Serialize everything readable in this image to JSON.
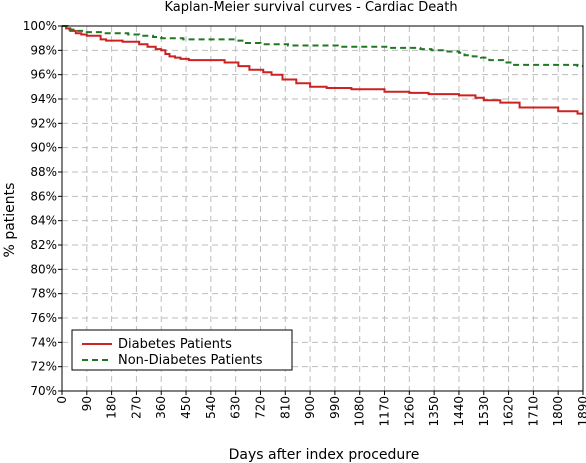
{
  "chart_data": {
    "type": "line",
    "title": "Kaplan-Meier survival curves - Cardiac Death",
    "xlabel": "Days after index procedure",
    "ylabel": "% patients",
    "xlim": [
      0,
      1890
    ],
    "ylim": [
      70,
      100
    ],
    "x_ticks": [
      0,
      90,
      180,
      270,
      360,
      450,
      540,
      630,
      720,
      810,
      900,
      990,
      1080,
      1170,
      1260,
      1350,
      1440,
      1530,
      1620,
      1710,
      1800,
      1890
    ],
    "y_ticks": [
      70,
      72,
      74,
      76,
      78,
      80,
      82,
      84,
      86,
      88,
      90,
      92,
      94,
      96,
      98,
      100
    ],
    "y_tick_suffix": "%",
    "grid": true,
    "legend_position": "bottom-left",
    "series": [
      {
        "name": "Diabetes Patients",
        "color": "#cc2222",
        "dash": "solid",
        "x": [
          0,
          15,
          30,
          50,
          70,
          90,
          140,
          160,
          220,
          280,
          310,
          340,
          360,
          375,
          390,
          410,
          430,
          460,
          560,
          590,
          640,
          680,
          730,
          760,
          800,
          850,
          900,
          960,
          1050,
          1170,
          1260,
          1330,
          1440,
          1500,
          1530,
          1590,
          1660,
          1800,
          1870,
          1890
        ],
        "y": [
          100,
          99.8,
          99.6,
          99.4,
          99.3,
          99.2,
          98.9,
          98.8,
          98.7,
          98.5,
          98.3,
          98.1,
          98.0,
          97.7,
          97.5,
          97.4,
          97.3,
          97.2,
          97.2,
          97.0,
          96.7,
          96.4,
          96.2,
          96.0,
          95.6,
          95.3,
          95.0,
          94.9,
          94.8,
          94.6,
          94.5,
          94.4,
          94.3,
          94.1,
          93.9,
          93.7,
          93.3,
          93.0,
          92.8,
          92.8
        ]
      },
      {
        "name": "Non-Diabetes Patients",
        "color": "#227722",
        "dash": "dashed",
        "x": [
          0,
          20,
          50,
          90,
          150,
          240,
          280,
          330,
          360,
          440,
          630,
          660,
          720,
          820,
          920,
          1000,
          1100,
          1180,
          1260,
          1300,
          1340,
          1390,
          1440,
          1460,
          1490,
          1520,
          1550,
          1600,
          1640,
          1720,
          1830,
          1870,
          1890
        ],
        "y": [
          100,
          99.7,
          99.6,
          99.5,
          99.4,
          99.3,
          99.2,
          99.1,
          99.0,
          98.9,
          98.8,
          98.6,
          98.5,
          98.4,
          98.4,
          98.3,
          98.3,
          98.2,
          98.2,
          98.1,
          98.0,
          97.9,
          97.8,
          97.6,
          97.5,
          97.4,
          97.2,
          97.0,
          96.8,
          96.8,
          96.8,
          96.7,
          96.7
        ]
      }
    ]
  }
}
